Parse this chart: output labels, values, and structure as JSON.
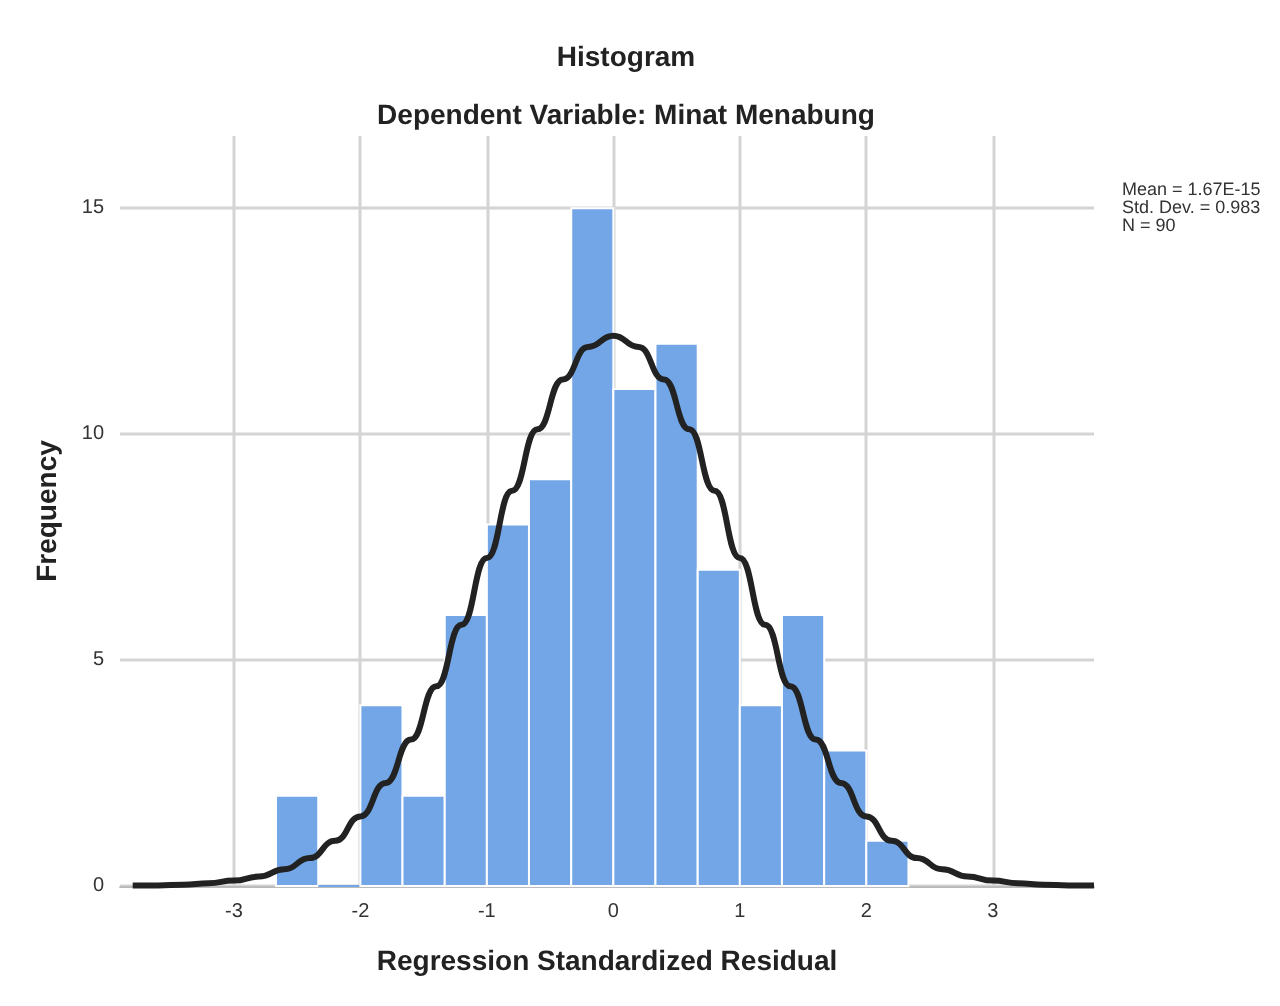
{
  "chart_data": {
    "type": "histogram",
    "title": "Histogram",
    "subtitle": "Dependent Variable: Minat Menabung",
    "xlabel": "Regression Standardized Residual",
    "ylabel": "Frequency",
    "bins": [
      -2.667,
      -2.333,
      -2,
      -1.667,
      -1.333,
      -1,
      -0.667,
      -0.333,
      0,
      0.333,
      0.667,
      1,
      1.333,
      1.667,
      2,
      2.333
    ],
    "values": [
      2,
      0,
      4,
      2,
      6,
      8,
      9,
      15,
      11,
      12,
      7,
      4,
      6,
      3,
      1
    ],
    "color": "#72a6e6",
    "series": [
      {
        "type": "line",
        "color": "#222222",
        "x": [
          -3.8,
          -3.6,
          -3.4,
          -3.2,
          -3,
          -2.8,
          -2.6,
          -2.4,
          -2.2,
          -2,
          -1.8,
          -1.6,
          -1.4,
          -1.2,
          -1,
          -0.8,
          -0.6,
          -0.4,
          -0.2,
          0,
          0.2,
          0.4,
          0.6,
          0.8,
          1,
          1.2,
          1.4,
          1.6,
          1.8,
          2,
          2.2,
          2.4,
          2.6,
          2.8,
          3,
          3.2,
          3.4,
          3.6,
          3.8
        ],
        "values": [
          0.01,
          0.01,
          0.03,
          0.06,
          0.12,
          0.21,
          0.37,
          0.62,
          1.0,
          1.54,
          2.28,
          3.24,
          4.42,
          5.78,
          7.26,
          8.75,
          10.11,
          11.21,
          11.93,
          12.18,
          11.93,
          11.21,
          10.11,
          8.75,
          7.26,
          5.78,
          4.42,
          3.24,
          2.28,
          1.54,
          1.0,
          0.62,
          0.37,
          0.21,
          0.12,
          0.06,
          0.03,
          0.01,
          0.01
        ]
      }
    ],
    "xlim": [
      -3.9,
      3.8
    ],
    "ylim": [
      0,
      16.6
    ],
    "xticks": [
      -3,
      -2,
      -1,
      0,
      1,
      2,
      3
    ],
    "yticks": [
      0,
      5,
      10,
      15
    ],
    "grid": true,
    "marker": "none",
    "line_style": "solid",
    "annotations": [
      "Mean = 1.67E-15",
      "Std. Dev. = 0.983",
      "N = 90"
    ]
  }
}
